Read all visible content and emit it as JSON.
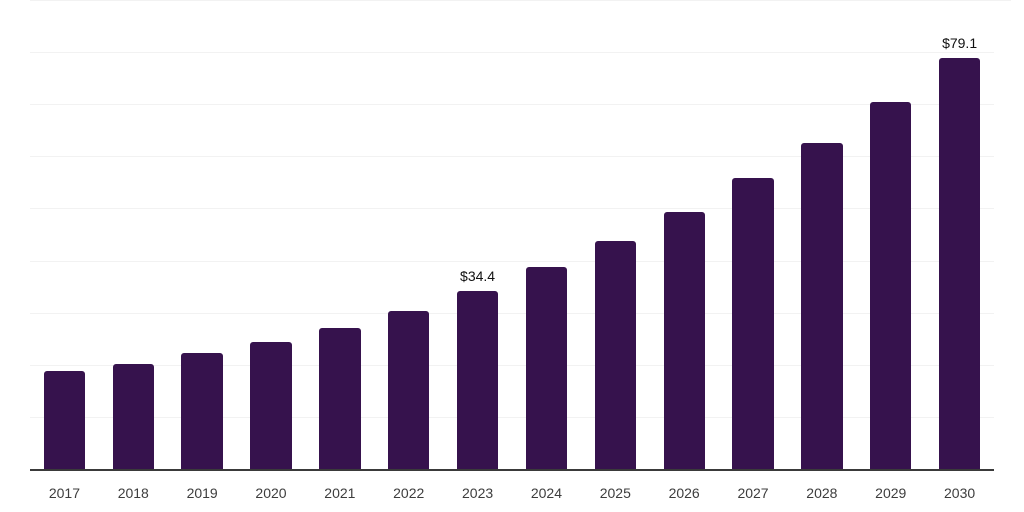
{
  "chart_data": {
    "type": "bar",
    "title": "",
    "xlabel": "",
    "ylabel": "",
    "categories": [
      "2017",
      "2018",
      "2019",
      "2020",
      "2021",
      "2022",
      "2023",
      "2024",
      "2025",
      "2026",
      "2027",
      "2028",
      "2029",
      "2030"
    ],
    "values": [
      19.0,
      20.3,
      22.4,
      24.6,
      27.2,
      30.5,
      34.4,
      38.9,
      43.9,
      49.6,
      56.0,
      62.8,
      70.7,
      79.1
    ],
    "data_labels": {
      "2023": "$34.4",
      "2030": "$79.1"
    },
    "ylim": [
      0,
      90
    ],
    "gridline_step": 10,
    "grid": true,
    "legend": false,
    "y_axis_labels_visible": false,
    "colors": {
      "bar": "#36124d",
      "axis": "#3a3a3a",
      "gridline": "#f2f2f2",
      "tick_label": "#3d3d3d",
      "value_label": "#111111",
      "background": "#ffffff"
    }
  }
}
